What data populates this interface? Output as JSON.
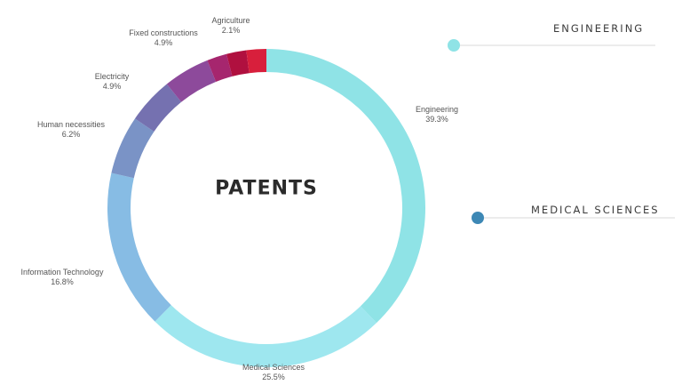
{
  "chart_data": {
    "type": "pie",
    "title": "PATENTS",
    "slices": [
      {
        "label": "Engineering",
        "value": 39.3,
        "value_label": "39.3%",
        "color": "#8fe3e6"
      },
      {
        "label": "Medical Sciences",
        "value": 25.5,
        "value_label": "25.5%",
        "color": "#9ee7ef"
      },
      {
        "label": "Information Technology",
        "value": 16.8,
        "value_label": "16.8%",
        "color": "#87bce4"
      },
      {
        "label": "Human necessities",
        "value": 6.2,
        "value_label": "6.2%",
        "color": "#7a93c6"
      },
      {
        "label": "Electricity",
        "value": 4.9,
        "value_label": "4.9%",
        "color": "#7571b0"
      },
      {
        "label": "Fixed constructions",
        "value": 4.9,
        "value_label": "4.9%",
        "color": "#8d4a9b"
      },
      {
        "label": "Agriculture",
        "value": 2.1,
        "value_label": "2.1%",
        "color": "#a6266e"
      },
      {
        "label": "",
        "value": 2.1,
        "value_label": "",
        "color": "#b0103f"
      },
      {
        "label": "",
        "value": 2.1,
        "value_label": "",
        "color": "#d81f3c"
      }
    ],
    "legend": [
      {
        "label": "ENGINEERING",
        "color": "#8fe3e6"
      },
      {
        "label": "MEDICAL SCIENCES",
        "color": "#3d88b5"
      }
    ]
  }
}
